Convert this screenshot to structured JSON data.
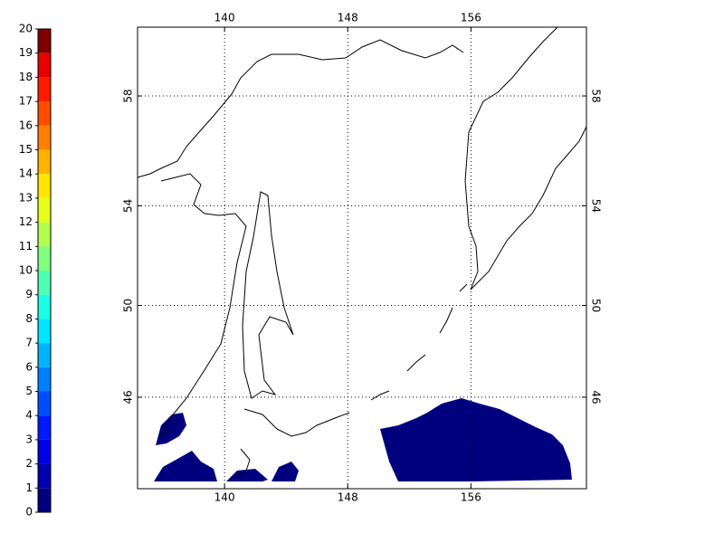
{
  "colorbar": {
    "lim": [
      0,
      20
    ],
    "ticks": [
      0,
      1,
      2,
      3,
      4,
      5,
      6,
      7,
      8,
      9,
      10,
      11,
      12,
      13,
      14,
      15,
      16,
      17,
      18,
      19,
      20
    ],
    "colors": [
      "#00007f",
      "#0000b3",
      "#0000e6",
      "#001aff",
      "#004dff",
      "#0080ff",
      "#00b3ff",
      "#00e6ff",
      "#1affe6",
      "#4dffb3",
      "#80ff80",
      "#b3ff4d",
      "#e6ff1a",
      "#ffe600",
      "#ffb300",
      "#ff8000",
      "#ff4d00",
      "#ff1a00",
      "#e60000",
      "#800000"
    ]
  },
  "map": {
    "projection": "mercator",
    "xlim": [
      134.35,
      163.5
    ],
    "ylim": [
      41.7,
      60.3
    ],
    "xticks": [
      140,
      148,
      156
    ],
    "yticks": [
      46,
      50,
      54,
      58
    ],
    "grid": true
  }
}
